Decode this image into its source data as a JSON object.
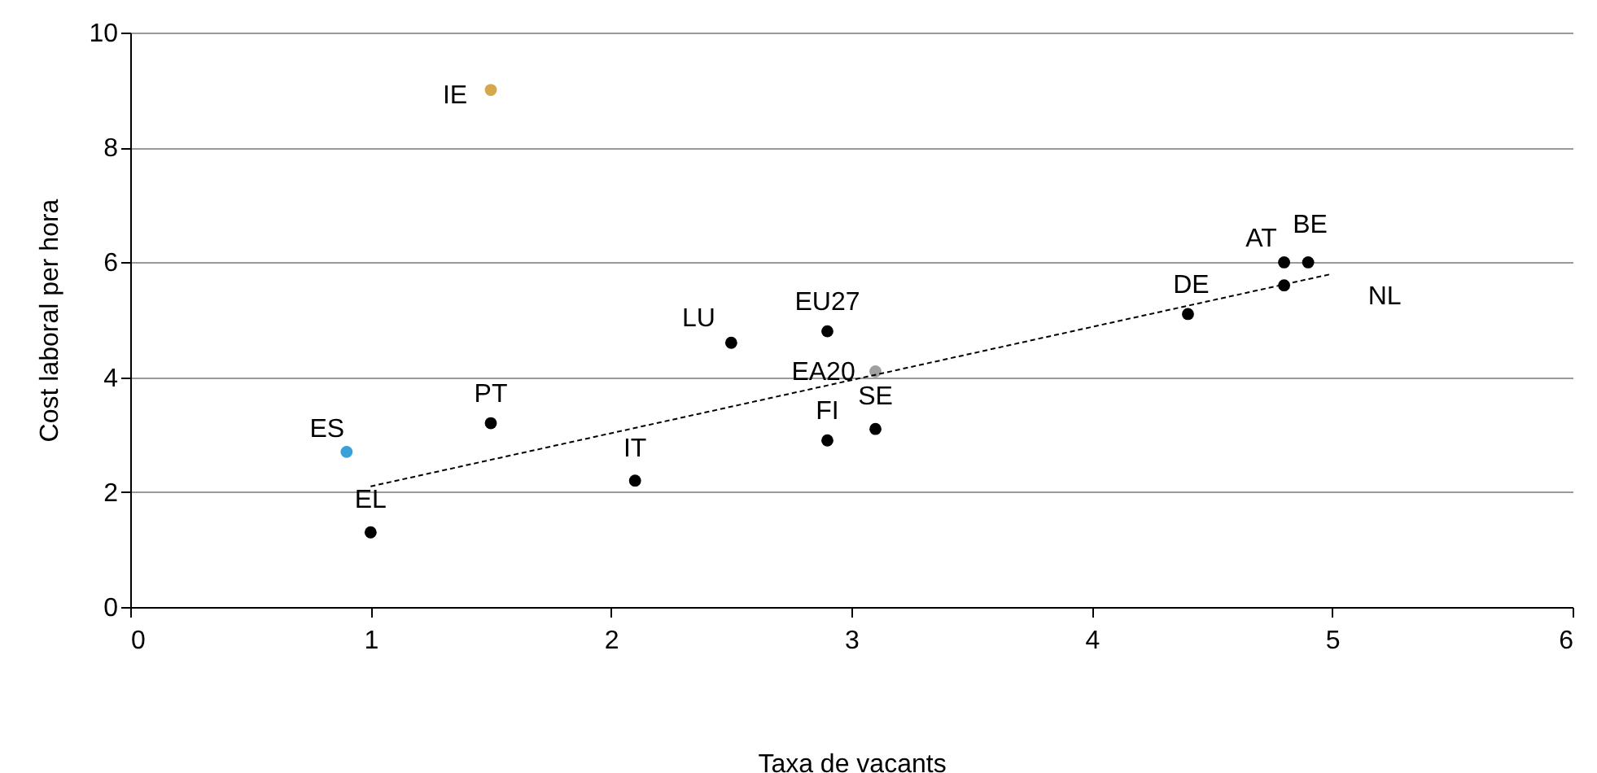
{
  "chart_data": {
    "type": "scatter",
    "xlabel": "Taxa de vacants",
    "ylabel": "Cost laboral per hora",
    "xlim": [
      0,
      6
    ],
    "xticks": [
      0,
      1,
      2,
      3,
      4,
      5,
      6
    ],
    "ylim": [
      0,
      10
    ],
    "yticks": [
      0,
      2,
      4,
      6,
      8,
      10
    ],
    "grid": "y",
    "series": [
      {
        "marker": "circle",
        "x": [
          1.5,
          0.9,
          1.0,
          1.5,
          2.1,
          2.5,
          2.9,
          2.9,
          3.1,
          3.1,
          4.4,
          4.8,
          4.8,
          4.9
        ],
        "values": [
          9.0,
          2.7,
          1.3,
          3.2,
          2.2,
          4.6,
          4.8,
          2.9,
          4.1,
          3.1,
          5.1,
          5.6,
          6.0,
          6.0
        ],
        "colors": [
          "#d4a84b",
          "#3aa0d8",
          "#000000",
          "#000000",
          "#000000",
          "#000000",
          "#000000",
          "#000000",
          "#a0a0a0",
          "#000000",
          "#000000",
          "#000000",
          "#000000",
          "#000000"
        ]
      },
      {
        "type": "line",
        "x": [
          1.0,
          5.0
        ],
        "values": [
          2.1,
          5.8
        ],
        "color": "#000000",
        "line_style": "dashed"
      }
    ],
    "annotations": [
      {
        "text": "IE",
        "x": 1.5,
        "y": 9.0
      },
      {
        "text": "ES",
        "x": 0.9,
        "y": 2.7
      },
      {
        "text": "EL",
        "x": 1.0,
        "y": 1.3
      },
      {
        "text": "PT",
        "x": 1.5,
        "y": 3.2
      },
      {
        "text": "IT",
        "x": 2.1,
        "y": 2.2
      },
      {
        "text": "LU",
        "x": 2.5,
        "y": 4.6
      },
      {
        "text": "EU27",
        "x": 2.9,
        "y": 4.8
      },
      {
        "text": "FI",
        "x": 2.9,
        "y": 2.9
      },
      {
        "text": "EA20",
        "x": 3.1,
        "y": 4.1
      },
      {
        "text": "SE",
        "x": 3.1,
        "y": 3.1
      },
      {
        "text": "DE",
        "x": 4.4,
        "y": 5.1
      },
      {
        "text": "AT",
        "x": 4.8,
        "y": 5.6
      },
      {
        "text": "BE",
        "x": 4.8,
        "y": 6.0
      },
      {
        "text": "NL",
        "x": 4.9,
        "y": 6.0
      }
    ]
  }
}
